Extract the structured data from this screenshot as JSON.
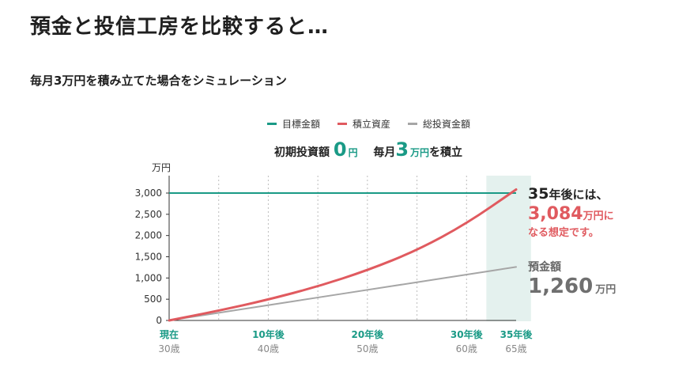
{
  "header": {
    "title": "預金と投信工房を比較すると…",
    "subtitle": "毎月3万円を積み立てた場合をシミュレーション"
  },
  "legend": [
    {
      "label": "目標金額",
      "color": "#1a9a86"
    },
    {
      "label": "積立資産",
      "color": "#e05a5f"
    },
    {
      "label": "総投資金額",
      "color": "#a6a6a6"
    }
  ],
  "condition": {
    "initial_label": "初期投資額",
    "initial_value": "0",
    "initial_unit": "円",
    "monthly_label": "毎月",
    "monthly_value": "3",
    "monthly_unit": "万円",
    "monthly_suffix": "を積立"
  },
  "annotations": {
    "result_years": "35",
    "result_years_suffix": "年後には、",
    "result_value": "3,084",
    "result_unit": "万円に",
    "result_tail": "なる想定です。",
    "deposit_label": "預金額",
    "deposit_value": "1,260",
    "deposit_unit": "万円"
  },
  "chart_data": {
    "type": "line",
    "ylabel": "万円",
    "ylim": [
      0,
      3300
    ],
    "yticks": [
      0,
      500,
      1000,
      1500,
      2000,
      2500,
      3000
    ],
    "ytick_labels": [
      "0",
      "500",
      "1,000",
      "1,500",
      "2,000",
      "2,500",
      "3,000"
    ],
    "xlim": [
      0,
      35
    ],
    "xgrid": [
      5,
      10,
      15,
      20,
      25,
      30
    ],
    "xticks": [
      {
        "x": 0,
        "top": "現在",
        "bottom": "30歳"
      },
      {
        "x": 10,
        "top": "10年後",
        "bottom": "40歳"
      },
      {
        "x": 20,
        "top": "20年後",
        "bottom": "50歳"
      },
      {
        "x": 30,
        "top": "30年後",
        "bottom": "60歳"
      },
      {
        "x": 35,
        "top": "35年後",
        "bottom": "65歳"
      }
    ],
    "highlight_band": [
      32,
      36.5
    ],
    "series": [
      {
        "name": "目標金額",
        "color": "#1a9a86",
        "x": [
          0,
          35
        ],
        "y": [
          3000,
          3000
        ]
      },
      {
        "name": "積立資産",
        "color": "#e05a5f",
        "x": [
          0,
          5,
          10,
          15,
          20,
          25,
          30,
          35
        ],
        "y": [
          0,
          230,
          490,
          800,
          1180,
          1650,
          2280,
          3084
        ]
      },
      {
        "name": "総投資金額",
        "color": "#a6a6a6",
        "x": [
          0,
          5,
          10,
          15,
          20,
          25,
          30,
          35
        ],
        "y": [
          0,
          180,
          360,
          540,
          720,
          900,
          1080,
          1260
        ]
      }
    ],
    "series_colors": {
      "target": "#1a9a86",
      "asset": "#e05a5f",
      "invested": "#a6a6a6",
      "highlight": "#e4f1ee",
      "xtick_top": "#1a9a86",
      "xtick_bottom": "#888888"
    }
  }
}
